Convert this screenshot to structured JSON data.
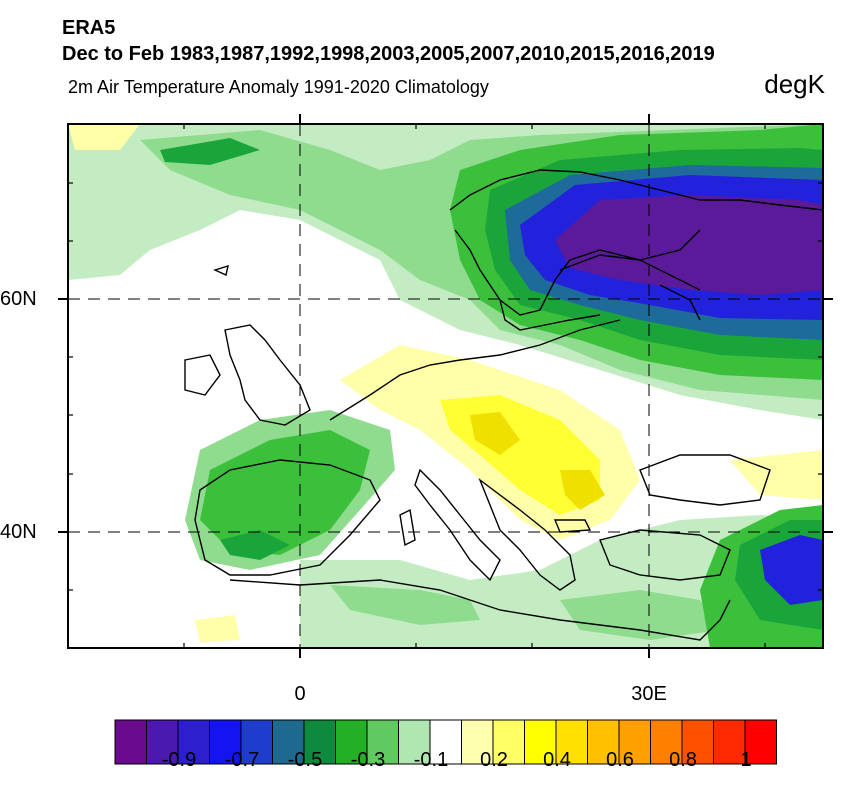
{
  "header": {
    "source": "ERA5",
    "period": "Dec to Feb 1983,1987,1992,1998,2003,2005,2007,2010,2015,2016,2019",
    "variable": "2m Air Temperature Anomaly  1991-2020 Climatology",
    "units": "degK"
  },
  "axes": {
    "lat_labels": [
      "60N",
      "40N"
    ],
    "lon_labels": [
      "0",
      "30E"
    ]
  },
  "colorbar": {
    "labels": [
      "-0.9",
      "-0.7",
      "-0.5",
      "-0.3",
      "-0.1",
      "0.2",
      "0.4",
      "0.6",
      "0.8",
      "1"
    ],
    "colors": [
      "#6a0a8c",
      "#4b18b0",
      "#2d1fd0",
      "#1414f2",
      "#1e3ccd",
      "#1d6a8e",
      "#0d8a3e",
      "#24b024",
      "#60c960",
      "#b0e6b0",
      "#ffffff",
      "#ffffb0",
      "#ffff66",
      "#ffff00",
      "#ffe000",
      "#ffc000",
      "#ffa000",
      "#ff8000",
      "#ff5000",
      "#ff2a00",
      "#ff0000"
    ]
  },
  "map": {
    "region": "Europe",
    "colors": {
      "dark_purple": "#5a1a9a",
      "blue": "#2222dd",
      "teal": "#1e6a9a",
      "dark_green": "#1aa53a",
      "green": "#3cc03c",
      "light_green": "#8fdc8f",
      "pale_green": "#c3ecc3",
      "pale_yellow": "#ffffaa",
      "yellow": "#ffff33",
      "gold": "#f0e000",
      "coast": "#000000"
    }
  }
}
